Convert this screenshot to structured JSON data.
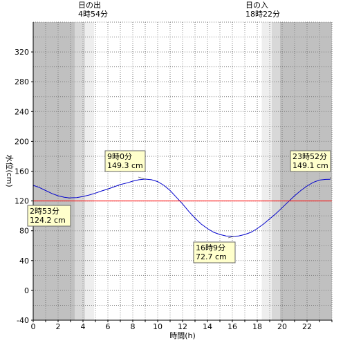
{
  "chart_data": {
    "type": "line",
    "xlabel": "時間(h)",
    "ylabel": "水位(cm)",
    "xlim": [
      0,
      24
    ],
    "ylim": [
      -40,
      360
    ],
    "x_ticks": [
      0,
      2,
      4,
      6,
      8,
      10,
      12,
      14,
      16,
      18,
      20,
      22
    ],
    "y_ticks": [
      -40,
      0,
      40,
      80,
      120,
      160,
      200,
      240,
      280,
      320
    ],
    "grid": true,
    "series": [
      {
        "color": "#0000cc",
        "x": [
          0,
          0.5,
          1,
          1.5,
          2,
          2.5,
          2.883,
          3.5,
          4,
          4.5,
          5,
          5.5,
          6,
          6.5,
          7,
          7.5,
          8,
          8.5,
          9,
          9.5,
          10,
          10.5,
          11,
          11.5,
          12,
          12.5,
          13,
          13.5,
          14,
          14.5,
          15,
          15.5,
          16,
          16.15,
          16.5,
          17,
          17.5,
          18,
          18.5,
          19,
          19.5,
          20,
          20.5,
          21,
          21.5,
          22,
          22.5,
          23,
          23.5,
          23.867
        ],
        "y": [
          141,
          138,
          134,
          130,
          127,
          125,
          124.2,
          124.5,
          126,
          128,
          130.5,
          133.5,
          136,
          139,
          142,
          144,
          146.5,
          148.5,
          149.3,
          148.5,
          146,
          141,
          134,
          125,
          116,
          106,
          97,
          89,
          83,
          78,
          75,
          73,
          72.8,
          72.7,
          73,
          75,
          78,
          83,
          89,
          96,
          103,
          111,
          119,
          127,
          134,
          140,
          145,
          148,
          149,
          149.1
        ]
      },
      {
        "color": "#ff0000",
        "x": [
          0,
          24
        ],
        "y": [
          120,
          120
        ]
      }
    ],
    "annotations": [
      {
        "x": 9.0,
        "y": 149.3,
        "time": "9時0分",
        "level": "149.3 cm"
      },
      {
        "x": 2.883,
        "y": 124.2,
        "time": "2時53分",
        "level": "124.2 cm"
      },
      {
        "x": 16.15,
        "y": 72.7,
        "time": "16時9分",
        "level": "72.7 cm"
      },
      {
        "x": 23.867,
        "y": 149.1,
        "time": "23時52分",
        "level": "149.1 cm"
      }
    ],
    "sunrise": {
      "label": "日の出",
      "time": "4時54分",
      "hour": 4.9
    },
    "sunset": {
      "label": "日の入",
      "time": "18時22分",
      "hour": 18.367
    },
    "shading": {
      "night_color": "#c0c0c0",
      "twilight_color": "#d8d8d8",
      "dawn_color": "#eeeeee",
      "night_end": 3.333,
      "twilight_end": 4.167,
      "dawn_end": 4.9,
      "dusk_start": 18.367,
      "dusk_twilight_start": 19.167,
      "night_start": 19.833
    }
  }
}
